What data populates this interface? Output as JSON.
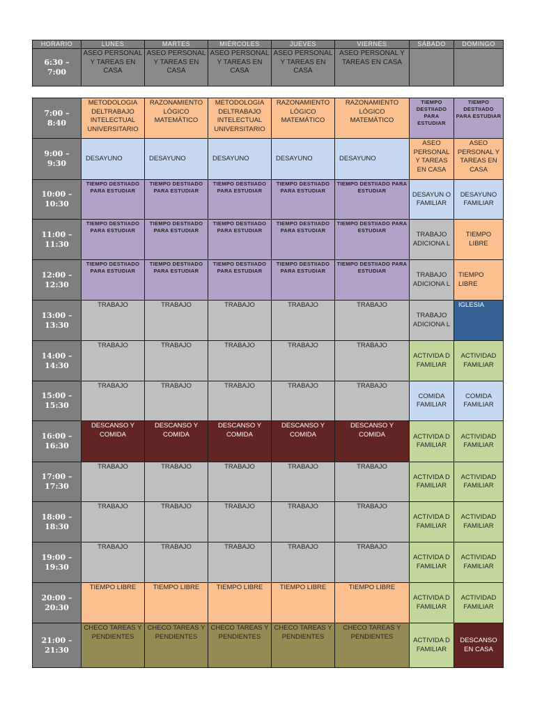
{
  "colors": {
    "gray_dark": "#7f7f7f",
    "orange": "#fac090",
    "purple": "#b3a2c7",
    "light_blue": "#c6d9f1",
    "gray": "#bfbfbf",
    "maroon": "#632523",
    "green": "#c3d69b",
    "olive": "#948a54",
    "blue": "#366092"
  },
  "header": [
    "HORARIO",
    "LUNES",
    "MARTES",
    "MIÉRCOLES",
    "JUEVES",
    "VIERNES",
    "SÁBADO",
    "DOMINGO"
  ],
  "early_row": {
    "time": "6:30 – 7:00",
    "cells": [
      "ASEO PERSONAL Y TAREAS EN CASA",
      "ASEO PERSONAL Y TAREAS EN CASA",
      "ASEO PERSONAL Y TAREAS EN CASA",
      "ASEO PERSONAL Y TAREAS EN CASA",
      "ASEO PERSONAL Y TAREAS EN CASA",
      "",
      ""
    ]
  },
  "rows": [
    {
      "time": "7:00 – 8:40",
      "cells": [
        {
          "text": "METODOLOGIA DELTRABAJO INTELECTUAL UNIVERSITARIO",
          "color": "orange"
        },
        {
          "text": "RAZONAMIENTO LÓGICO MATEMÁTICO",
          "color": "orange"
        },
        {
          "text": "METODOLOGIA DELTRABAJO INTELECTUAL UNIVERSITARIO",
          "color": "orange"
        },
        {
          "text": "RAZONAMIENTO LÓGICO MATEMÁTICO",
          "color": "orange"
        },
        {
          "text": "RAZONAMIENTO LÓGICO MATEMÁTICO",
          "color": "orange"
        },
        {
          "text": "TIEMPO DESTIIADO PARA ESTUDIAR",
          "color": "purple",
          "style": "small"
        },
        {
          "text": "TIEMPO DESTIIADO PARA ESTUDIAR",
          "color": "purple",
          "style": "small"
        }
      ]
    },
    {
      "time": "9:00 – 9:30",
      "cells": [
        {
          "text": "DESAYUNO",
          "color": "light_blue",
          "style": "left mid"
        },
        {
          "text": "DESAYUNO",
          "color": "light_blue",
          "style": "left mid"
        },
        {
          "text": "DESAYUNO",
          "color": "light_blue",
          "style": "left mid"
        },
        {
          "text": "DESAYUNO",
          "color": "light_blue",
          "style": "left mid"
        },
        {
          "text": "DESAYUNO",
          "color": "light_blue",
          "style": "left mid"
        },
        {
          "text": "ASEO PERSONAL Y TAREAS EN CASA",
          "color": "orange"
        },
        {
          "text": "ASEO PERSONAL Y TAREAS EN CASA",
          "color": "orange"
        }
      ]
    },
    {
      "time": "10:00 – 10:30",
      "cells": [
        {
          "text": "TIEMPO DESTIIADO PARA ESTUDIAR",
          "color": "purple",
          "style": "small"
        },
        {
          "text": "TIEMPO DESTIIADO PARA ESTUDIAR",
          "color": "purple",
          "style": "small"
        },
        {
          "text": "TIEMPO DESTIIADO PARA ESTUDIAR",
          "color": "purple",
          "style": "small"
        },
        {
          "text": "TIEMPO DESTIIADO PARA ESTUDIAR",
          "color": "purple",
          "style": "small"
        },
        {
          "text": "TIEMPO DESTIIADO PARA ESTUDIAR",
          "color": "purple",
          "style": "small"
        },
        {
          "text": "DESAYUN O FAMILIAR",
          "color": "light_blue",
          "style": "mid"
        },
        {
          "text": "DESAYUNO FAMILIAR",
          "color": "light_blue",
          "style": "mid"
        }
      ]
    },
    {
      "time": "11:00 – 11:30",
      "cells": [
        {
          "text": "TIEMPO DESTIIADO PARA ESTUDIAR",
          "color": "purple",
          "style": "small"
        },
        {
          "text": "TIEMPO DESTIIADO PARA ESTUDIAR",
          "color": "purple",
          "style": "small"
        },
        {
          "text": "TIEMPO DESTIIADO PARA ESTUDIAR",
          "color": "purple",
          "style": "small"
        },
        {
          "text": "TIEMPO DESTIIADO PARA ESTUDIAR",
          "color": "purple",
          "style": "small"
        },
        {
          "text": "TIEMPO DESTIIADO PARA ESTUDIAR",
          "color": "purple",
          "style": "small"
        },
        {
          "text": "TRABAJO ADICIONA L",
          "color": "gray",
          "style": "mid"
        },
        {
          "text": "TIEMPO LIBRE",
          "color": "orange",
          "style": "mid"
        }
      ]
    },
    {
      "time": "12:00 – 12:30",
      "cells": [
        {
          "text": "TIEMPO DESTIIADO PARA ESTUDIAR",
          "color": "purple",
          "style": "small"
        },
        {
          "text": "TIEMPO DESTIIADO PARA ESTUDIAR",
          "color": "purple",
          "style": "small"
        },
        {
          "text": "TIEMPO DESTIIADO PARA ESTUDIAR",
          "color": "purple",
          "style": "small"
        },
        {
          "text": "TIEMPO DESTIIADO PARA ESTUDIAR",
          "color": "purple",
          "style": "small"
        },
        {
          "text": "TIEMPO DESTIIADO PARA ESTUDIAR",
          "color": "purple",
          "style": "small"
        },
        {
          "text": "TRABAJO ADICIONA L",
          "color": "gray",
          "style": "mid"
        },
        {
          "text": "TIEMPO LIBRE",
          "color": "orange",
          "style": "mid left"
        }
      ]
    },
    {
      "time": "13:00 – 13:30",
      "cells": [
        {
          "text": "TRABAJO",
          "color": "gray"
        },
        {
          "text": "TRABAJO",
          "color": "gray"
        },
        {
          "text": "TRABAJO",
          "color": "gray"
        },
        {
          "text": "TRABAJO",
          "color": "gray"
        },
        {
          "text": "TRABAJO",
          "color": "gray"
        },
        {
          "text": "TRABAJO ADICIONA L",
          "color": "gray",
          "style": "mid"
        },
        {
          "text": "IGLESIA",
          "color": "blue",
          "style": "left white"
        }
      ]
    },
    {
      "time": "14:00 – 14:30",
      "cells": [
        {
          "text": "TRABAJO",
          "color": "gray"
        },
        {
          "text": "TRABAJO",
          "color": "gray"
        },
        {
          "text": "TRABAJO",
          "color": "gray"
        },
        {
          "text": "TRABAJO",
          "color": "gray"
        },
        {
          "text": "TRABAJO",
          "color": "gray"
        },
        {
          "text": "ACTIVIDA D FAMILIAR",
          "color": "green",
          "style": "mid"
        },
        {
          "text": "ACTIVIDAD FAMILIAR",
          "color": "green",
          "style": "mid"
        }
      ]
    },
    {
      "time": "15:00 – 15:30",
      "cells": [
        {
          "text": "TRABAJO",
          "color": "gray"
        },
        {
          "text": "TRABAJO",
          "color": "gray"
        },
        {
          "text": "TRABAJO",
          "color": "gray"
        },
        {
          "text": "TRABAJO",
          "color": "gray"
        },
        {
          "text": "TRABAJO",
          "color": "gray"
        },
        {
          "text": "COMIDA FAMILIAR",
          "color": "light_blue",
          "style": "mid"
        },
        {
          "text": "COMIDA FAMILIAR",
          "color": "light_blue",
          "style": "mid"
        }
      ]
    },
    {
      "time": "16:00 – 16:30",
      "cells": [
        {
          "text": "DESCANSO Y COMIDA",
          "color": "maroon",
          "style": "white"
        },
        {
          "text": "DESCANSO Y COMIDA",
          "color": "maroon",
          "style": "white"
        },
        {
          "text": "DESCANSO Y COMIDA",
          "color": "maroon",
          "style": "white"
        },
        {
          "text": "DESCANSO Y COMIDA",
          "color": "maroon",
          "style": "white"
        },
        {
          "text": "DESCANSO Y COMIDA",
          "color": "maroon",
          "style": "white"
        },
        {
          "text": "ACTIVIDA D FAMILIAR",
          "color": "green",
          "style": "mid"
        },
        {
          "text": "ACTIVIDAD FAMILIAR",
          "color": "green",
          "style": "mid"
        }
      ]
    },
    {
      "time": "17:00 – 17:30",
      "cells": [
        {
          "text": "TRABAJO",
          "color": "gray"
        },
        {
          "text": "TRABAJO",
          "color": "gray"
        },
        {
          "text": "TRABAJO",
          "color": "gray"
        },
        {
          "text": "TRABAJO",
          "color": "gray"
        },
        {
          "text": "TRABAJO",
          "color": "gray"
        },
        {
          "text": "ACTIVIDA D FAMILIAR",
          "color": "green",
          "style": "mid"
        },
        {
          "text": "ACTIVIDAD FAMILIAR",
          "color": "green",
          "style": "mid"
        }
      ]
    },
    {
      "time": "18:00 – 18:30",
      "cells": [
        {
          "text": "TRABAJO",
          "color": "gray"
        },
        {
          "text": "TRABAJO",
          "color": "gray"
        },
        {
          "text": "TRABAJO",
          "color": "gray"
        },
        {
          "text": "TRABAJO",
          "color": "gray"
        },
        {
          "text": "TRABAJO",
          "color": "gray"
        },
        {
          "text": "ACTIVIDA D FAMILIAR",
          "color": "green",
          "style": "mid"
        },
        {
          "text": "ACTIVIDAD FAMILIAR",
          "color": "green",
          "style": "mid"
        }
      ]
    },
    {
      "time": "19:00 – 19:30",
      "cells": [
        {
          "text": "TRABAJO",
          "color": "gray"
        },
        {
          "text": "TRABAJO",
          "color": "gray"
        },
        {
          "text": "TRABAJO",
          "color": "gray"
        },
        {
          "text": "TRABAJO",
          "color": "gray"
        },
        {
          "text": "TRABAJO",
          "color": "gray"
        },
        {
          "text": "ACTIVIDA D FAMILIAR",
          "color": "green",
          "style": "mid"
        },
        {
          "text": "ACTIVIDAD FAMILIAR",
          "color": "green",
          "style": "mid"
        }
      ]
    },
    {
      "time": "20:00 – 20:30",
      "cells": [
        {
          "text": "TIEMPO LIBRE",
          "color": "orange"
        },
        {
          "text": "TIEMPO LIBRE",
          "color": "orange"
        },
        {
          "text": "TIEMPO LIBRE",
          "color": "orange"
        },
        {
          "text": "TIEMPO LIBRE",
          "color": "orange"
        },
        {
          "text": "TIEMPO LIBRE",
          "color": "orange"
        },
        {
          "text": "ACTIVIDA D FAMILIAR",
          "color": "green",
          "style": "mid"
        },
        {
          "text": "ACTIVIDAD FAMILIAR",
          "color": "green",
          "style": "mid"
        }
      ]
    },
    {
      "time": "21:00 – 21:30",
      "cells": [
        {
          "text": "CHECO TAREAS Y PENDIENTES",
          "color": "olive"
        },
        {
          "text": "CHECO TAREAS Y PENDIENTES",
          "color": "olive"
        },
        {
          "text": "CHECO TAREAS Y PENDIENTES",
          "color": "olive"
        },
        {
          "text": "CHECO TAREAS Y PENDIENTES",
          "color": "olive"
        },
        {
          "text": "CHECO TAREAS Y PENDIENTES",
          "color": "olive"
        },
        {
          "text": "ACTIVIDA D FAMILIAR",
          "color": "green",
          "style": "mid"
        },
        {
          "text": "DESCANSO EN CASA",
          "color": "maroon",
          "style": "white mid"
        }
      ]
    }
  ]
}
